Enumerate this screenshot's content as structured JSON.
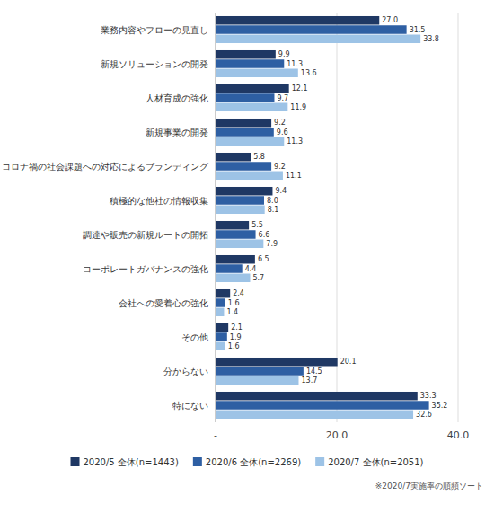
{
  "chart_data": {
    "type": "bar",
    "orientation": "horizontal",
    "categories": [
      "業務内容やフローの見直し",
      "新規ソリューションの開発",
      "人材育成の強化",
      "新規事業の開発",
      "コロナ禍の社会課題への対応によるブランディング",
      "積極的な他社の情報収集",
      "調達や販売の新規ルートの開拓",
      "コーポレートガバナンスの強化",
      "会社への愛着心の強化",
      "その他",
      "分からない",
      "特にない"
    ],
    "series": [
      {
        "name": "2020/5 全体(n=1443)",
        "color": "#1f3864",
        "values": [
          27.0,
          9.9,
          12.1,
          9.2,
          5.8,
          9.4,
          5.5,
          6.5,
          2.4,
          2.1,
          20.1,
          33.3
        ],
        "value_labels": [
          "27.0",
          "9.9",
          "12.1",
          "9.2",
          "5.8",
          "9.4",
          "5.5",
          "6.5",
          "2.4",
          "2.1",
          "20.1",
          "33.3"
        ]
      },
      {
        "name": "2020/6 全体(n=2269)",
        "color": "#2e5fa3",
        "values": [
          31.5,
          11.3,
          9.7,
          9.6,
          9.2,
          8.0,
          6.6,
          4.4,
          1.6,
          1.9,
          14.5,
          35.2
        ],
        "value_labels": [
          "31.5",
          "11.3",
          "9.7",
          "9.6",
          "9.2",
          "8.0",
          "6.6",
          "4.4",
          "1.6",
          "1.9",
          "14.5",
          "35.2"
        ]
      },
      {
        "name": "2020/7 全体(n=2051)",
        "color": "#9dc3e6",
        "values": [
          33.8,
          13.6,
          11.9,
          11.3,
          11.1,
          8.1,
          7.9,
          5.7,
          1.4,
          1.6,
          13.7,
          32.6
        ],
        "value_labels": [
          "33.8",
          "13.6",
          "11.9",
          "11.3",
          "11.1",
          "8.1",
          "7.9",
          "5.7",
          "1.4",
          "1.6",
          "13.7",
          "32.6"
        ]
      }
    ],
    "xlim": [
      0,
      40
    ],
    "xticks": [
      {
        "value": 0,
        "label": "-"
      },
      {
        "value": 20,
        "label": "20.0"
      },
      {
        "value": 40,
        "label": "40.0"
      }
    ],
    "grid": true,
    "data_labels": true,
    "legend": "bottom",
    "annotations": [
      "※2020/7実施率の順頻ソート"
    ]
  }
}
